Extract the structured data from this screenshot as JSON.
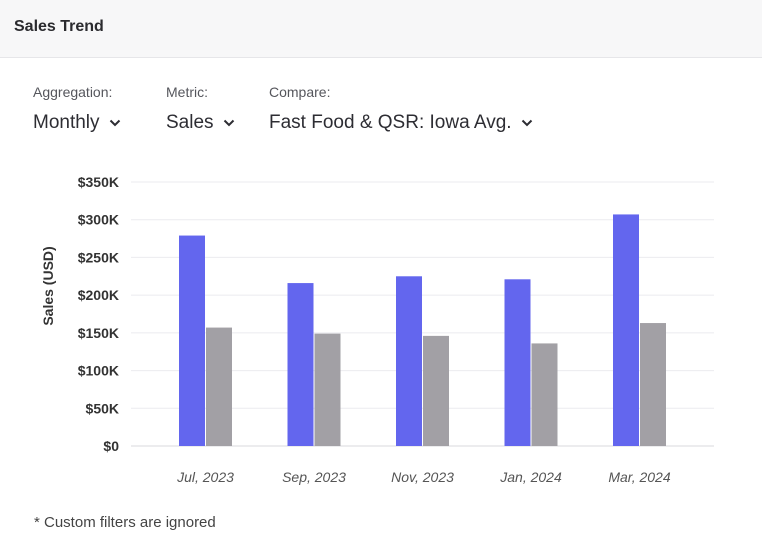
{
  "header": {
    "title": "Sales Trend"
  },
  "controls": [
    {
      "label": "Aggregation:",
      "value": "Monthly",
      "icon": "chevron-down-icon"
    },
    {
      "label": "Metric:",
      "value": "Sales",
      "icon": "chevron-down-icon"
    },
    {
      "label": "Compare:",
      "value": "Fast Food & QSR: Iowa Avg.",
      "icon": "chevron-down-icon"
    }
  ],
  "colors": {
    "primary": "#6366ee",
    "compare": "#a2a0a5",
    "grid": "#ebebef"
  },
  "chart_data": {
    "type": "bar",
    "categories": [
      "Jul, 2023",
      "Sep, 2023",
      "Nov, 2023",
      "Jan, 2024",
      "Mar, 2024"
    ],
    "series": [
      {
        "values": [
          279000,
          216000,
          225000,
          221000,
          307000
        ]
      },
      {
        "values": [
          157000,
          149000,
          146000,
          136000,
          163000
        ]
      }
    ],
    "ylabel": "Sales (USD)",
    "yticks": [
      "$0",
      "$50K",
      "$100K",
      "$150K",
      "$200K",
      "$250K",
      "$300K",
      "$350K"
    ],
    "ylim": [
      0,
      350000
    ],
    "grid": true
  },
  "footnote": "* Custom filters are ignored"
}
